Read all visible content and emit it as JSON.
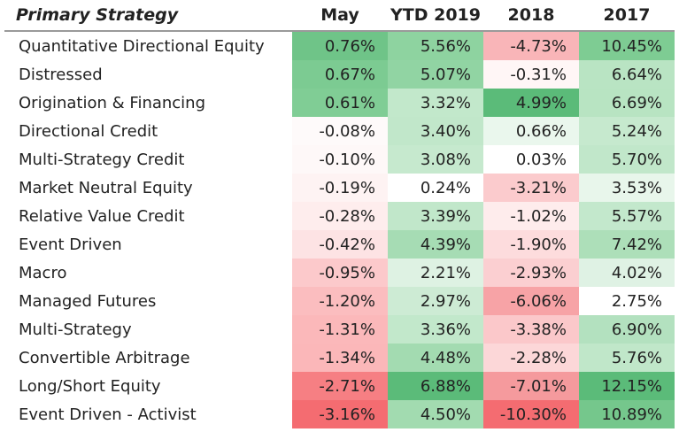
{
  "chart_data": {
    "type": "table",
    "title": "",
    "columns": [
      "Primary Strategy",
      "May",
      "YTD 2019",
      "2018",
      "2017"
    ],
    "rows": [
      {
        "strategy": "Quantitative Directional Equity",
        "values": [
          0.76,
          5.56,
          -4.73,
          10.45
        ],
        "labels": [
          "0.76%",
          "5.56%",
          "-4.73%",
          "10.45%"
        ],
        "colors": [
          "#6fc488",
          "#8ed3a0",
          "#f9b5b8",
          "#7ecc93"
        ]
      },
      {
        "strategy": "Distressed",
        "values": [
          0.67,
          5.07,
          -0.31,
          6.64
        ],
        "labels": [
          "0.67%",
          "5.07%",
          "-0.31%",
          "6.64%"
        ],
        "colors": [
          "#7ccb92",
          "#91d4a3",
          "#fff6f6",
          "#b9e4c3"
        ]
      },
      {
        "strategy": "Origination & Financing",
        "values": [
          0.61,
          3.32,
          4.99,
          6.69
        ],
        "labels": [
          "0.61%",
          "3.32%",
          "4.99%",
          "6.69%"
        ],
        "colors": [
          "#80cd95",
          "#c2e8cb",
          "#5bbb79",
          "#b8e4c2"
        ]
      },
      {
        "strategy": "Directional Credit",
        "values": [
          -0.08,
          3.4,
          0.66,
          5.24
        ],
        "labels": [
          "-0.08%",
          "3.40%",
          "0.66%",
          "5.24%"
        ],
        "colors": [
          "#fefafa",
          "#c1e7ca",
          "#eaf7ed",
          "#c6e9ce"
        ]
      },
      {
        "strategy": "Multi-Strategy Credit",
        "values": [
          -0.1,
          3.08,
          0.03,
          5.7
        ],
        "labels": [
          "-0.10%",
          "3.08%",
          "0.03%",
          "5.70%"
        ],
        "colors": [
          "#fef8f8",
          "#c6e9ce",
          "#ffffff",
          "#c1e7ca"
        ]
      },
      {
        "strategy": "Market Neutral Equity",
        "values": [
          -0.19,
          0.24,
          -3.21,
          3.53
        ],
        "labels": [
          "-0.19%",
          "0.24%",
          "-3.21%",
          "3.53%"
        ],
        "colors": [
          "#fef3f3",
          "#ffffff",
          "#fbcbcd",
          "#e8f6eb"
        ]
      },
      {
        "strategy": "Relative Value Credit",
        "values": [
          -0.28,
          3.39,
          -1.02,
          5.57
        ],
        "labels": [
          "-0.28%",
          "3.39%",
          "-1.02%",
          "5.57%"
        ],
        "colors": [
          "#feeded",
          "#c1e7ca",
          "#feecec",
          "#c3e8cc"
        ]
      },
      {
        "strategy": "Event Driven",
        "values": [
          -0.42,
          4.39,
          -1.9,
          7.42
        ],
        "labels": [
          "-0.42%",
          "4.39%",
          "-1.90%",
          "7.42%"
        ],
        "colors": [
          "#fde3e4",
          "#a6dcb4",
          "#fddcdd",
          "#addfb9"
        ]
      },
      {
        "strategy": "Macro",
        "values": [
          -0.95,
          2.21,
          -2.93,
          4.02
        ],
        "labels": [
          "-0.95%",
          "2.21%",
          "-2.93%",
          "4.02%"
        ],
        "colors": [
          "#fcc9cb",
          "#def2e3",
          "#fbcfd1",
          "#dff2e4"
        ]
      },
      {
        "strategy": "Managed Futures",
        "values": [
          -1.2,
          2.97,
          -6.06,
          2.75
        ],
        "labels": [
          "-1.20%",
          "2.97%",
          "-6.06%",
          "2.75%"
        ],
        "colors": [
          "#fbbdbf",
          "#cdebd4",
          "#f7a3a6",
          "#ffffff"
        ]
      },
      {
        "strategy": "Multi-Strategy",
        "values": [
          -1.31,
          3.36,
          -3.38,
          6.9
        ],
        "labels": [
          "-1.31%",
          "3.36%",
          "-3.38%",
          "6.90%"
        ],
        "colors": [
          "#fbb8ba",
          "#c2e8cb",
          "#fbc8ca",
          "#b3e1bf"
        ]
      },
      {
        "strategy": "Convertible Arbitrage",
        "values": [
          -1.34,
          4.48,
          -2.28,
          5.76
        ],
        "labels": [
          "-1.34%",
          "4.48%",
          "-2.28%",
          "5.76%"
        ],
        "colors": [
          "#fbb7b9",
          "#a3dbb1",
          "#fcd7d8",
          "#c0e7c9"
        ]
      },
      {
        "strategy": "Long/Short Equity",
        "values": [
          -2.71,
          6.88,
          -7.01,
          12.15
        ],
        "labels": [
          "-2.71%",
          "6.88%",
          "-7.01%",
          "12.15%"
        ],
        "colors": [
          "#f67f83",
          "#5bbb79",
          "#f59a9d",
          "#5bbb79"
        ]
      },
      {
        "strategy": "Event Driven - Activist",
        "values": [
          -3.16,
          4.5,
          -10.3,
          10.89
        ],
        "labels": [
          "-3.16%",
          "4.50%",
          "-10.30%",
          "10.89%"
        ],
        "colors": [
          "#f46c71",
          "#a2dbb0",
          "#f46c71",
          "#75c78c"
        ]
      }
    ]
  }
}
